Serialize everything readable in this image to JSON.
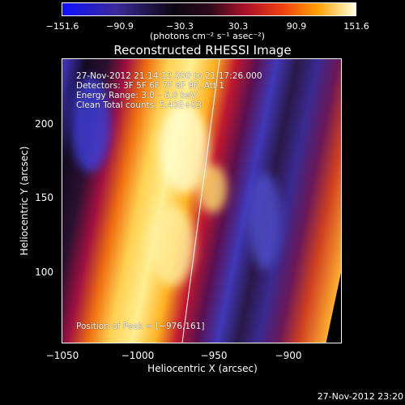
{
  "colorbar": {
    "ticks": [
      "−151.6",
      "−90.9",
      "−30.3",
      "30.3",
      "90.9",
      "151.6"
    ],
    "unit_label": "(photons cm⁻² s⁻¹ asec⁻²)"
  },
  "title": "Reconstructed RHESSI Image",
  "info": {
    "time_range": "27-Nov-2012 21:14:12.000 to 21:17:26.000",
    "detectors": "Detectors: 3F 5F 6F 7F 8F 9F, Att 1",
    "energy": "Energy Range: 3.0 – 6.0 keV",
    "clean": "Clean    Total counts: 5.43E+03",
    "peak": "Position of Peak = [−976,161]"
  },
  "axes": {
    "x_label": "Heliocentric X (arcsec)",
    "y_label": "Heliocentric Y (arcsec)",
    "x_ticks": [
      "−1050",
      "−1000",
      "−950",
      "−900"
    ],
    "y_ticks": [
      "200",
      "150",
      "100"
    ]
  },
  "footer_timestamp": "27-Nov-2012 23:20"
}
